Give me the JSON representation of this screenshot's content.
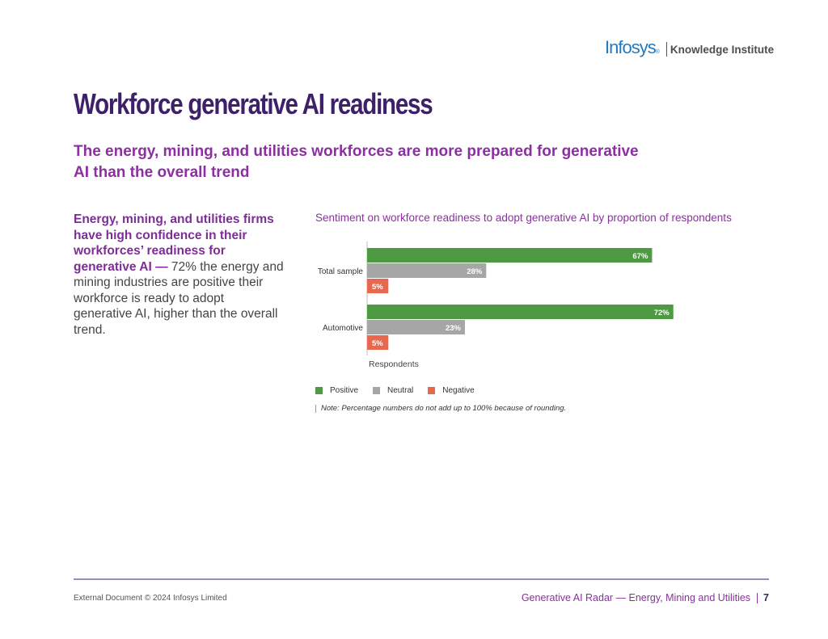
{
  "header": {
    "logo_brand": "Infosys",
    "logo_registered": "®",
    "logo_sub": "Knowledge Institute"
  },
  "title": "Workforce generative AI readiness",
  "subtitle": "The energy, mining, and utilities workforces are more prepared for generative AI than the overall trend",
  "lead": {
    "highlight": "Energy, mining, and utilities firms have high confidence in their workforces’ readiness for generative AI —",
    "text": " 72% the energy and mining industries are positive their workforce is ready to adopt generative AI, higher than the overall trend."
  },
  "chart_data": {
    "type": "bar",
    "orientation": "horizontal",
    "title": "Sentiment on workforce readiness to adopt generative AI by proportion of respondents",
    "categories": [
      "Total sample",
      "Automotive"
    ],
    "series": [
      {
        "name": "Positive",
        "color": "#4d9a42",
        "values": [
          67,
          72
        ]
      },
      {
        "name": "Neutral",
        "color": "#a6a6a6",
        "values": [
          28,
          23
        ]
      },
      {
        "name": "Negative",
        "color": "#e8684f",
        "values": [
          5,
          5
        ]
      }
    ],
    "value_suffix": "%",
    "xlabel": "Respondents",
    "xlim": [
      0,
      100
    ],
    "legend_position": "bottom-left"
  },
  "legend": {
    "positive": "Positive",
    "neutral": "Neutral",
    "negative": "Negative"
  },
  "note": "Note: Percentage numbers do not add up to 100% because of rounding.",
  "footer": {
    "left": "External Document © 2024 Infosys Limited",
    "right": "Generative AI Radar — Energy, Mining and Utilities",
    "page": "7"
  }
}
